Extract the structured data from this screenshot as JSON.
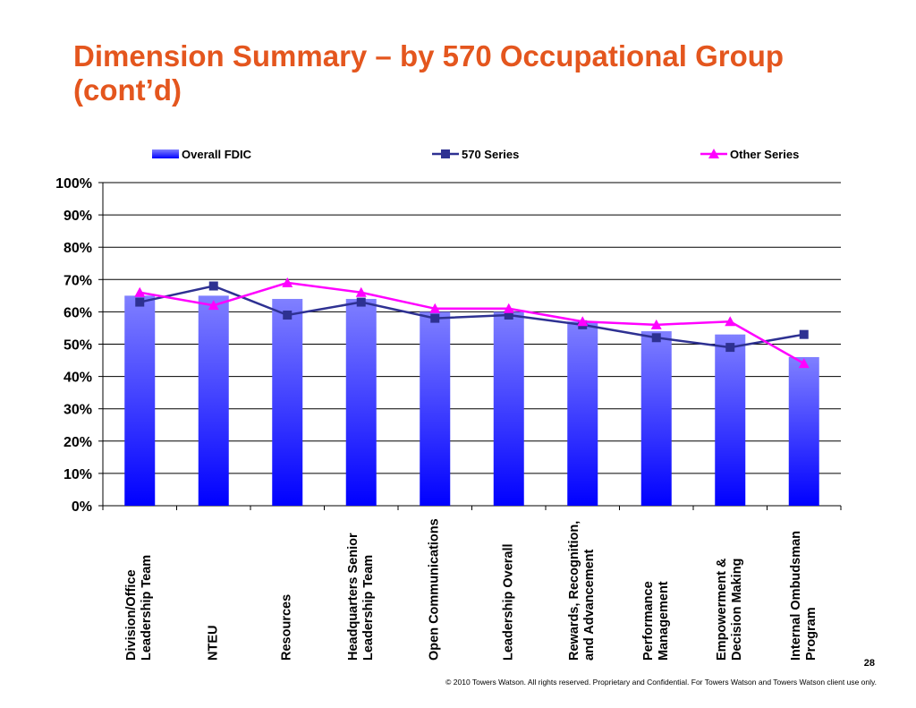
{
  "chart_data": {
    "type": "bar-line",
    "title": "Dimension Summary – by 570 Occupational Group (cont’d)",
    "categories": [
      "Division/Office Leadership Team",
      "NTEU",
      "Resources",
      "Headquarters Senior Leadership Team",
      "Open Communications",
      "Leadership Overall",
      "Rewards, Recognition, and Advancement",
      "Performance Management",
      "Empowerment & Decision Making",
      "Internal Ombudsman Program"
    ],
    "series": [
      {
        "name": "Overall FDIC",
        "type": "bar",
        "color": "#8080ff",
        "values": [
          65,
          65,
          64,
          64,
          60,
          60,
          57,
          54,
          53,
          46
        ]
      },
      {
        "name": "570 Series",
        "type": "line",
        "marker": "square",
        "color": "#2e3192",
        "values": [
          63,
          68,
          59,
          63,
          58,
          59,
          56,
          52,
          49,
          53
        ]
      },
      {
        "name": "Other Series",
        "type": "line",
        "marker": "triangle",
        "color": "#ff00ff",
        "values": [
          66,
          62,
          69,
          66,
          61,
          61,
          57,
          56,
          57,
          44
        ]
      }
    ],
    "ylim": [
      0,
      100
    ],
    "yticks": [
      {
        "value": 0,
        "label": "0%"
      },
      {
        "value": 10,
        "label": "10%"
      },
      {
        "value": 20,
        "label": "20%"
      },
      {
        "value": 30,
        "label": "30%"
      },
      {
        "value": 40,
        "label": "40%"
      },
      {
        "value": 50,
        "label": "50%"
      },
      {
        "value": 60,
        "label": "60%"
      },
      {
        "value": 70,
        "label": "70%"
      },
      {
        "value": 80,
        "label": "80%"
      },
      {
        "value": 90,
        "label": "90%"
      },
      {
        "value": 100,
        "label": "100%"
      }
    ],
    "grid": true,
    "legend": "top"
  },
  "page_number": "28",
  "footer": "© 2010 Towers Watson. All rights reserved. Proprietary and Confidential. For Towers Watson and Towers Watson client use only."
}
